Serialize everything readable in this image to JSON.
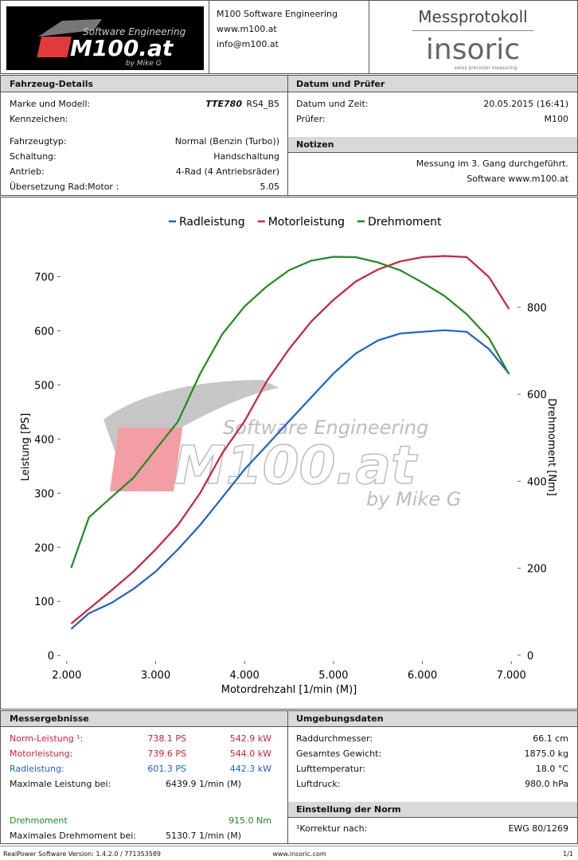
{
  "header": {
    "logo": {
      "tagline": "Software Engineering",
      "brand": "M100.at",
      "byline": "by Mike G"
    },
    "company": [
      "M100 Software Engineering",
      "www.m100.at",
      "info@m100.at"
    ],
    "protocol_title": "Messprotokoll",
    "sponsor": {
      "name": "insoric",
      "tagline": "swiss precision measuring"
    }
  },
  "vehicle": {
    "title": "Fahrzeug-Details",
    "rows": [
      [
        "Marke und Modell:",
        "TTE780",
        "RS4_B5"
      ],
      [
        "Kennzeichen:"
      ],
      [
        "Fahrzeugtyp:",
        "Normal (Benzin (Turbo))"
      ],
      [
        "Schaltung:",
        "Handschaltung"
      ],
      [
        "Antrieb:",
        "4-Rad (4 Antriebsräder)"
      ],
      [
        "Übersetzung Rad:Motor :",
        "5.05"
      ]
    ]
  },
  "inspection": {
    "title": "Datum und Prüfer",
    "rows": [
      [
        "Datum und Zeit:",
        "20.05.2015 (16:41)"
      ],
      [
        "Prüfer:",
        "M100"
      ]
    ]
  },
  "notes": {
    "title": "Notizen",
    "lines": [
      "Messung im 3. Gang durchgeführt.",
      "Software www.m100.at"
    ]
  },
  "chart_data": {
    "type": "line",
    "xlabel": "Motordrehzahl [1/min (M)]",
    "ylabel": "Leistung [PS]",
    "y2label": "Drehmoment [Nm]",
    "legend": "top",
    "x": [
      2050,
      2250,
      2500,
      2750,
      3000,
      3250,
      3500,
      3750,
      4000,
      4250,
      4500,
      4750,
      5000,
      5250,
      5500,
      5750,
      6000,
      6250,
      6500,
      6750,
      6975
    ],
    "series": [
      {
        "name": "Radleistung",
        "color": "#1f5fd0",
        "axis": "y",
        "values": [
          49,
          78,
          97,
          123,
          155,
          196,
          241,
          292,
          344,
          388,
          433,
          477,
          521,
          558,
          582,
          595,
          598,
          601,
          598,
          566,
          521
        ]
      },
      {
        "name": "Motorleistung",
        "color": "#d0203a",
        "axis": "y",
        "values": [
          59,
          86,
          120,
          155,
          196,
          241,
          300,
          374,
          433,
          507,
          566,
          617,
          657,
          691,
          713,
          728,
          736,
          738,
          736,
          699,
          640
        ]
      },
      {
        "name": "Drehmoment",
        "color": "#1f8a1f",
        "axis": "y2",
        "values": [
          201,
          317,
          363,
          408,
          473,
          537,
          647,
          738,
          802,
          848,
          885,
          907,
          916,
          915,
          903,
          885,
          857,
          826,
          784,
          729,
          646
        ]
      }
    ],
    "xlim": [
      1930,
      7070
    ],
    "ylim": [
      -10,
      780
    ],
    "y2lim": [
      -13,
      970
    ],
    "xticks": [
      {
        "value": 2000,
        "label": "2.000"
      },
      {
        "value": 3000,
        "label": "3.000"
      },
      {
        "value": 4000,
        "label": "4.000"
      },
      {
        "value": 5000,
        "label": "5.000"
      },
      {
        "value": 6000,
        "label": "6.000"
      },
      {
        "value": 7000,
        "label": "7.000"
      }
    ],
    "yticks": [
      0,
      100,
      200,
      300,
      400,
      500,
      600,
      700
    ],
    "y2ticks": [
      0,
      200,
      400,
      600,
      800
    ]
  },
  "results": {
    "title": "Messergebnisse",
    "rows": [
      {
        "label": "Norm-Leistung ¹:",
        "ps": "738.1 PS",
        "kw": "542.9 kW",
        "color": "#d0203a"
      },
      {
        "label": "Motorleistung:",
        "ps": "739.6 PS",
        "kw": "544.0 kW",
        "color": "#d0203a"
      },
      {
        "label": "Radleistung:",
        "ps": "601.3 PS",
        "kw": "442.3 kW",
        "color": "#1f5fd0"
      },
      {
        "label": "Maximale Leistung bei:",
        "at": "6439.9 1/min (M)",
        "color": "#111111"
      },
      {
        "label": "Drehmoment",
        "kw": "915.0 Nm",
        "color": "#1f8a1f"
      },
      {
        "label": "Maximales Drehmoment bei:",
        "at": "5130.7 1/min (M)",
        "color": "#111111"
      }
    ]
  },
  "environment": {
    "title": "Umgebungsdaten",
    "rows": [
      [
        "Raddurchmesser:",
        "66.1 cm"
      ],
      [
        "Gesamtes Gewicht:",
        "1875.0 kg"
      ],
      [
        "Lufttemperatur:",
        "18.0 °C"
      ],
      [
        "Luftdruck:",
        "980.0 hPa"
      ]
    ]
  },
  "norm": {
    "title": "Einstellung der Norm",
    "rows": [
      [
        "¹Korrektur nach:",
        "EWG 80/1269"
      ]
    ]
  },
  "footer": [
    "RealPower Software Version: 1.4.2.0 / 771353589",
    "www.insoric.com",
    "1/1"
  ]
}
